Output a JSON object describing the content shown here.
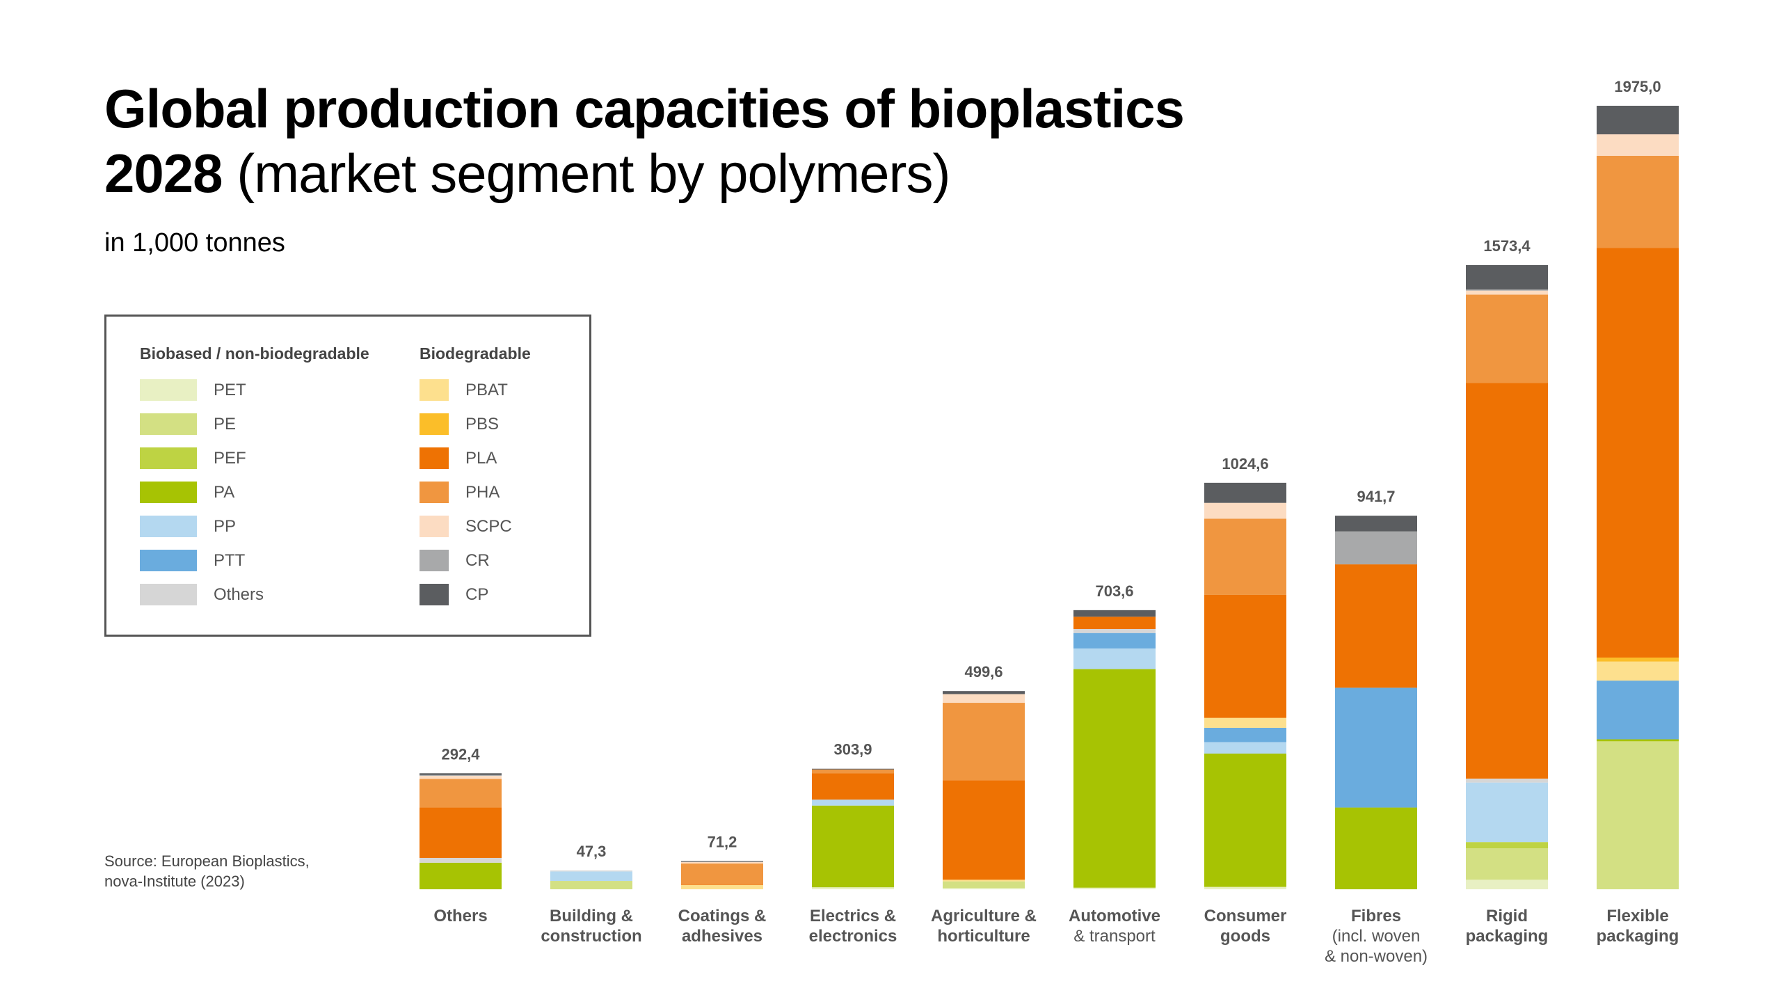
{
  "title": {
    "bold": "Global production capacities of bioplastics",
    "year": "2028",
    "rest": " (market segment by polymers)"
  },
  "subtitle": "in 1,000 tonnes",
  "source": {
    "line1": "Source: European Bioplastics,",
    "line2": "nova-Institute (2023)"
  },
  "legend": {
    "col1_title": "Biobased / non-biodegradable",
    "col2_title": "Biodegradable",
    "col1": [
      {
        "key": "PET",
        "label": "PET",
        "color": "#e8f0c3"
      },
      {
        "key": "PE",
        "label": "PE",
        "color": "#d3e083"
      },
      {
        "key": "PEF",
        "label": "PEF",
        "color": "#bed343"
      },
      {
        "key": "PA",
        "label": "PA",
        "color": "#a7c303"
      },
      {
        "key": "PP",
        "label": "PP",
        "color": "#b4d8f0"
      },
      {
        "key": "PTT",
        "label": "PTT",
        "color": "#6aacde"
      },
      {
        "key": "Others",
        "label": "Others",
        "color": "#d6d6d6"
      }
    ],
    "col2": [
      {
        "key": "PBAT",
        "label": "PBAT",
        "color": "#fde08e"
      },
      {
        "key": "PBS",
        "label": "PBS",
        "color": "#fbbe29"
      },
      {
        "key": "PLA",
        "label": "PLA",
        "color": "#ee7203"
      },
      {
        "key": "PHA",
        "label": "PHA",
        "color": "#f09640"
      },
      {
        "key": "SCPC",
        "label": "SCPC",
        "color": "#fcdcc2"
      },
      {
        "key": "CR",
        "label": "CR",
        "color": "#a8a9aa"
      },
      {
        "key": "CP",
        "label": "CP",
        "color": "#5b5d60"
      }
    ]
  },
  "chart_data": {
    "type": "bar",
    "stacked": true,
    "unit": "1,000 tonnes",
    "ylim": [
      0,
      1975
    ],
    "grid": false,
    "legend_position": "left",
    "series_order": [
      "PET",
      "PE",
      "PEF",
      "PA",
      "PP",
      "PTT",
      "Others",
      "PBAT",
      "PBS",
      "PLA",
      "PHA",
      "SCPC",
      "CR",
      "CP"
    ],
    "categories": [
      {
        "line1": "Others",
        "line2": "",
        "line3": "",
        "total": "292,4",
        "values": {
          "PA": 67,
          "Others": 12,
          "PLA": 127,
          "PHA": 72,
          "SCPC": 8,
          "CR": 2,
          "CP": 4.4
        }
      },
      {
        "line1": "Building &",
        "line2": "construction",
        "line3": "",
        "total": "47,3",
        "values": {
          "PE": 21,
          "PP": 24,
          "Others": 2.3
        }
      },
      {
        "line1": "Coatings &",
        "line2": "adhesives",
        "line3": "",
        "total": "71,2",
        "values": {
          "PBAT": 11,
          "PLA": 2,
          "PHA": 52,
          "SCPC": 4,
          "CP": 2.2
        }
      },
      {
        "line1": "Electrics &",
        "line2": "electronics",
        "line3": "",
        "total": "303,9",
        "values": {
          "PET": 5,
          "PA": 206,
          "PP": 15,
          "PLA": 66,
          "PHA": 10,
          "CP": 1.9
        }
      },
      {
        "line1": "Agriculture &",
        "line2": "horticulture",
        "line3": "",
        "total": "499,6",
        "values": {
          "PET": 3,
          "PE": 17,
          "PBAT": 4,
          "PLA": 251,
          "PHA": 195,
          "SCPC": 22,
          "CP": 7.6
        }
      },
      {
        "line1": "Automotive",
        "line2": "& transport",
        "line3": "",
        "total": "703,6",
        "values": {
          "PET": 4,
          "PA": 551,
          "PP": 52,
          "PTT": 39,
          "Others": 10,
          "PLA": 31,
          "CP": 16.6
        }
      },
      {
        "line1": "Consumer",
        "line2": "goods",
        "line3": "",
        "total": "1024,6",
        "values": {
          "PET": 6,
          "PA": 336,
          "PP": 29,
          "PTT": 36,
          "PBAT": 25,
          "PLA": 310,
          "PHA": 192,
          "SCPC": 40,
          "CP": 50.6
        }
      },
      {
        "line1": "Fibres",
        "line2": "(incl. woven",
        "line3": "& non-woven)",
        "total": "941,7",
        "values": {
          "PA": 206,
          "PTT": 302,
          "PLA": 311,
          "CR": 83,
          "CP": 39.7
        }
      },
      {
        "line1": "Rigid",
        "line2": "packaging",
        "line3": "",
        "total": "1573,4",
        "values": {
          "PET": 24,
          "PE": 79,
          "PEF": 16,
          "PP": 150,
          "Others": 10,
          "PLA": 997,
          "PHA": 223,
          "SCPC": 10,
          "CR": 3,
          "CP": 61.4
        }
      },
      {
        "line1": "Flexible",
        "line2": "packaging",
        "line3": "",
        "total": "1975,0",
        "values": {
          "PE": 373,
          "PA": 5,
          "PTT": 148,
          "PBAT": 48,
          "PBS": 10,
          "PLA": 1033,
          "PHA": 232,
          "SCPC": 54,
          "CP": 72
        }
      }
    ]
  }
}
